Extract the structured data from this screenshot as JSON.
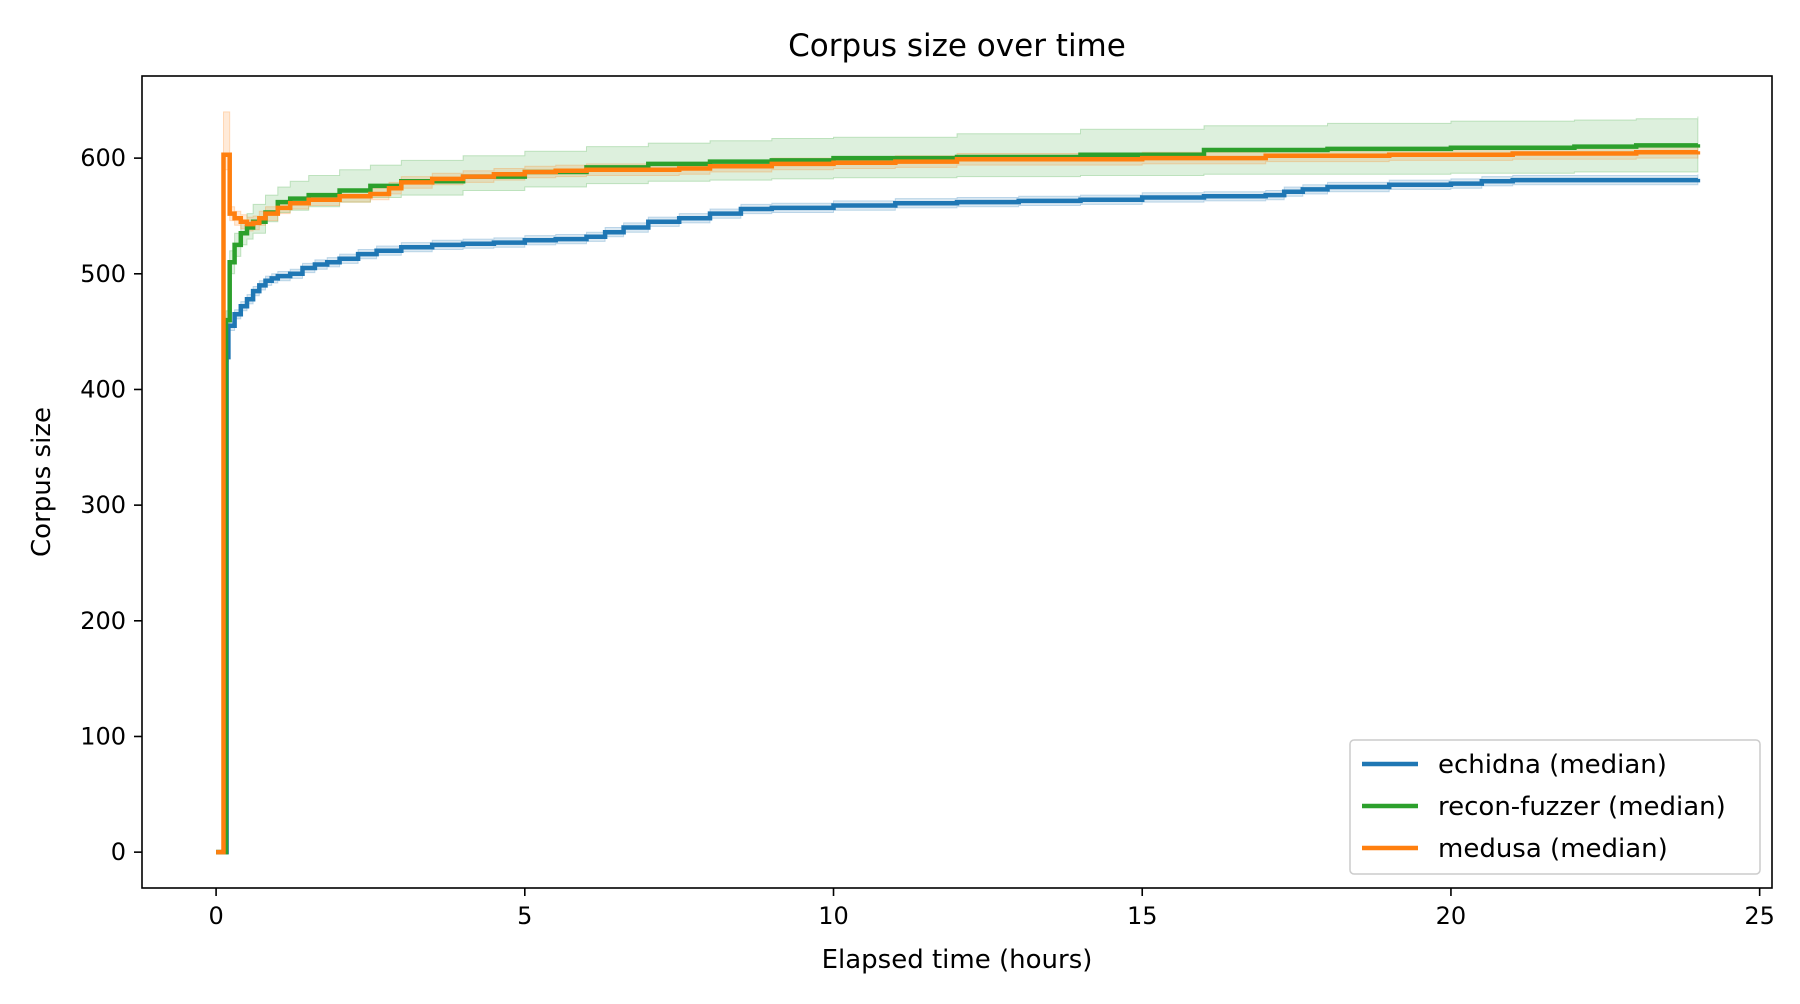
{
  "chart_data": {
    "type": "line",
    "title": "Corpus size over time",
    "xlabel": "Elapsed time (hours)",
    "ylabel": "Corpus size",
    "xlim": [
      -1.2,
      25.2
    ],
    "ylim": [
      -31,
      671
    ],
    "xticks": [
      0,
      5,
      10,
      15,
      20,
      25
    ],
    "yticks": [
      0,
      100,
      200,
      300,
      400,
      500,
      600
    ],
    "grid": false,
    "legend_position": "lower right",
    "step": true,
    "series": [
      {
        "name": "echidna (median)",
        "color": "#1f77b4",
        "x": [
          0,
          0.1,
          0.17,
          0.2,
          0.3,
          0.4,
          0.5,
          0.6,
          0.7,
          0.8,
          0.9,
          1.0,
          1.2,
          1.4,
          1.6,
          1.8,
          2.0,
          2.3,
          2.6,
          3.0,
          3.5,
          4.0,
          4.5,
          5.0,
          5.5,
          6.0,
          6.3,
          6.6,
          7.0,
          7.5,
          8.0,
          8.5,
          9.0,
          10.0,
          11.0,
          12.0,
          13.0,
          14.0,
          15.0,
          16.0,
          17.0,
          17.3,
          17.6,
          18.0,
          19.0,
          20.0,
          20.5,
          21.0,
          24.0
        ],
        "y": [
          0,
          0,
          428,
          455,
          465,
          472,
          478,
          485,
          490,
          494,
          496,
          498,
          500,
          505,
          508,
          510,
          513,
          517,
          520,
          523,
          525,
          526,
          527,
          529,
          530,
          532,
          536,
          540,
          545,
          548,
          552,
          556,
          557,
          559,
          561,
          562,
          563,
          564,
          566,
          567,
          568,
          571,
          573,
          575,
          577,
          578,
          580,
          581,
          582
        ],
        "band_low": [
          0,
          0,
          424,
          451,
          461,
          468,
          474,
          481,
          486,
          490,
          492,
          494,
          496,
          501,
          504,
          506,
          509,
          513,
          516,
          519,
          521,
          522,
          523,
          525,
          526,
          528,
          532,
          536,
          541,
          544,
          548,
          552,
          553,
          555,
          557,
          558,
          559,
          560,
          562,
          563,
          564,
          567,
          569,
          571,
          573,
          574,
          576,
          577,
          578
        ],
        "band_high": [
          0,
          0,
          432,
          459,
          469,
          476,
          482,
          489,
          494,
          498,
          500,
          502,
          504,
          509,
          512,
          514,
          517,
          521,
          524,
          527,
          529,
          530,
          531,
          533,
          534,
          536,
          540,
          544,
          549,
          552,
          556,
          560,
          561,
          563,
          565,
          566,
          567,
          568,
          570,
          571,
          572,
          575,
          577,
          579,
          581,
          582,
          584,
          585,
          586
        ]
      },
      {
        "name": "recon-fuzzer (median)",
        "color": "#2ca02c",
        "x": [
          0,
          0.1,
          0.16,
          0.22,
          0.3,
          0.4,
          0.5,
          0.6,
          0.8,
          1.0,
          1.2,
          1.5,
          2.0,
          2.5,
          3.0,
          4.0,
          5.0,
          6.0,
          7.0,
          8.0,
          9.0,
          10.0,
          12.0,
          14.0,
          16.0,
          18.0,
          20.0,
          22.0,
          23.0,
          24.0
        ],
        "y": [
          0,
          0,
          460,
          510,
          525,
          535,
          540,
          545,
          553,
          562,
          565,
          568,
          572,
          576,
          580,
          584,
          588,
          592,
          595,
          597,
          598,
          600,
          601,
          603,
          607,
          608,
          609,
          610,
          611,
          612
        ],
        "band_low": [
          0,
          0,
          452,
          500,
          515,
          525,
          530,
          535,
          545,
          553,
          555,
          558,
          562,
          566,
          568,
          572,
          575,
          578,
          580,
          581,
          582,
          583,
          584,
          585,
          586,
          586,
          587,
          588,
          588,
          589
        ],
        "band_high": [
          0,
          0,
          468,
          520,
          535,
          545,
          552,
          560,
          568,
          575,
          580,
          585,
          590,
          594,
          598,
          602,
          606,
          610,
          613,
          615,
          617,
          618,
          621,
          625,
          628,
          630,
          632,
          633,
          634,
          636
        ]
      },
      {
        "name": "medusa (median)",
        "color": "#ff7f0e",
        "x": [
          0,
          0.1,
          0.12,
          0.22,
          0.3,
          0.4,
          0.5,
          0.6,
          0.7,
          0.8,
          1.0,
          1.2,
          1.5,
          2.0,
          2.5,
          2.8,
          3.0,
          3.5,
          4.0,
          4.5,
          5.0,
          5.5,
          6.0,
          7.0,
          7.5,
          8.0,
          9.0,
          10.0,
          11.0,
          12.0,
          15.0,
          17.0,
          19.0,
          21.0,
          23.0,
          24.0
        ],
        "y": [
          0,
          0,
          603,
          552,
          548,
          545,
          543,
          544,
          548,
          552,
          557,
          561,
          564,
          567,
          569,
          574,
          579,
          582,
          584,
          586,
          588,
          589,
          590,
          590,
          591,
          593,
          595,
          596,
          597,
          599,
          600,
          602,
          603,
          604,
          605,
          606
        ],
        "band_low": [
          0,
          0,
          590,
          546,
          542,
          539,
          537,
          538,
          542,
          546,
          552,
          556,
          559,
          562,
          564,
          569,
          574,
          577,
          579,
          581,
          583,
          584,
          585,
          585,
          586,
          588,
          590,
          591,
          592,
          594,
          595,
          597,
          598,
          599,
          600,
          601
        ],
        "band_high": [
          0,
          0,
          640,
          558,
          554,
          551,
          549,
          550,
          554,
          558,
          562,
          566,
          569,
          572,
          574,
          579,
          584,
          587,
          589,
          591,
          593,
          594,
          595,
          595,
          596,
          598,
          600,
          601,
          602,
          604,
          605,
          607,
          608,
          609,
          610,
          611
        ]
      }
    ]
  }
}
